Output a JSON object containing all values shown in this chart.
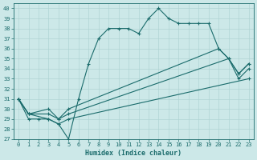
{
  "xlabel": "Humidex (Indice chaleur)",
  "xlim": [
    -0.5,
    23.5
  ],
  "ylim": [
    27,
    40.5
  ],
  "yticks": [
    27,
    28,
    29,
    30,
    31,
    32,
    33,
    34,
    35,
    36,
    37,
    38,
    39,
    40
  ],
  "xticks": [
    0,
    1,
    2,
    3,
    4,
    5,
    6,
    7,
    8,
    9,
    10,
    11,
    12,
    13,
    14,
    15,
    16,
    17,
    18,
    19,
    20,
    21,
    22,
    23
  ],
  "bg_color": "#cce8e8",
  "line_color": "#1a6b6b",
  "grid_color": "#b0d4d4",
  "lines": [
    {
      "x": [
        0,
        1,
        2,
        3,
        4,
        5,
        6,
        7,
        8,
        9,
        10,
        11,
        12,
        13,
        14,
        15,
        16,
        17,
        18,
        19,
        20,
        21,
        22,
        23
      ],
      "y": [
        31,
        29,
        29,
        29,
        28.5,
        27,
        31,
        34.5,
        37,
        38,
        38,
        38,
        37.5,
        39,
        40,
        39,
        38.5,
        38.5,
        38.5,
        38.5,
        36,
        35,
        33,
        34
      ]
    },
    {
      "x": [
        0,
        1,
        3,
        4,
        5,
        23
      ],
      "y": [
        31,
        29.5,
        29,
        28.5,
        29,
        33
      ]
    },
    {
      "x": [
        0,
        1,
        3,
        4,
        5,
        21,
        22,
        23
      ],
      "y": [
        31,
        29.5,
        29.5,
        29,
        29.5,
        35,
        33.5,
        34.5
      ]
    },
    {
      "x": [
        0,
        1,
        3,
        4,
        5,
        20,
        21,
        22,
        23
      ],
      "y": [
        31,
        29.5,
        30,
        29,
        30,
        36,
        35,
        33.5,
        34.5
      ]
    }
  ]
}
